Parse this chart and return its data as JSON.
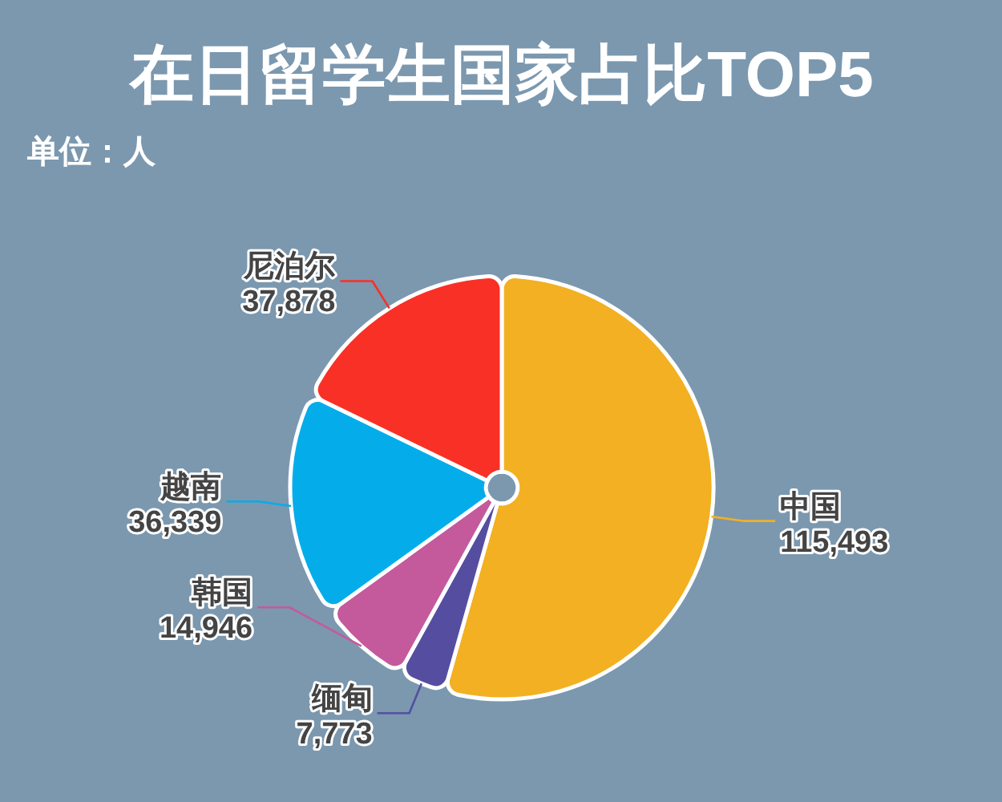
{
  "chart_data": {
    "type": "pie",
    "title": "在日留学生国家占比TOP5",
    "subtitle": "单位：人",
    "categories": [
      "中国",
      "缅甸",
      "韩国",
      "越南",
      "尼泊尔"
    ],
    "values": [
      115493,
      7773,
      14946,
      36339,
      37878
    ],
    "value_labels": [
      "115,493",
      "7,773",
      "14,946",
      "36,339",
      "37,878"
    ],
    "colors": [
      "#f2b022",
      "#554ea0",
      "#c45a9c",
      "#04adea",
      "#f93025"
    ]
  }
}
